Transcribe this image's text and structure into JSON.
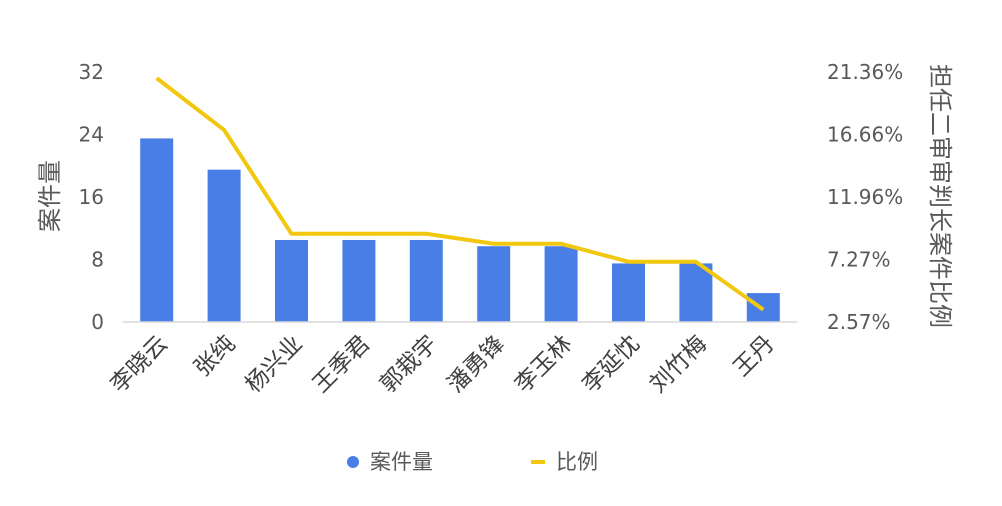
{
  "chart_data": {
    "type": "bar",
    "categories": [
      "李晓云",
      "张纯",
      "杨兴业",
      "王季君",
      "郭栽宇",
      "潘勇锋",
      "李玉林",
      "李延忱",
      "刘竹梅",
      "王丹"
    ],
    "series": [
      {
        "name": "案件量",
        "kind": "bar",
        "axis": "left",
        "values": [
          23.5,
          19.5,
          10.5,
          10.5,
          10.5,
          9.7,
          9.7,
          7.5,
          7.5,
          3.7
        ],
        "color": "#4a7ee7"
      },
      {
        "name": "比例",
        "kind": "line",
        "axis": "right",
        "values": [
          20.9,
          17.0,
          9.2,
          9.2,
          9.2,
          8.45,
          8.45,
          7.1,
          7.1,
          3.5
        ],
        "color": "#f2c80f"
      }
    ],
    "ylabel": "案件量",
    "y2label": "担任二审审判长案件比例",
    "ylim": [
      0,
      32
    ],
    "yticks": [
      "0",
      "8",
      "16",
      "24",
      "32"
    ],
    "y2lim": [
      2.57,
      21.36
    ],
    "y2ticks": [
      "2.57%",
      "7.27%",
      "11.96%",
      "16.66%",
      "21.36%"
    ],
    "legend_position": "bottom",
    "grid": false
  }
}
